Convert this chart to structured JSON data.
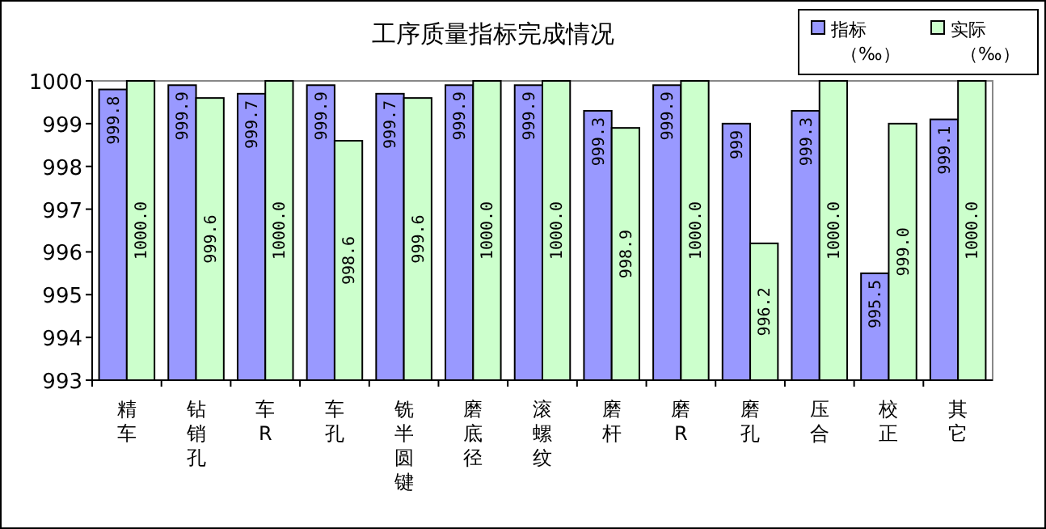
{
  "chart_data": {
    "type": "bar",
    "title": "工序质量指标完成情况",
    "categories": [
      "精车",
      "钻销孔",
      "车R",
      "车孔",
      "铣半圆键",
      "磨底径",
      "滚螺纹",
      "磨杆",
      "磨R",
      "磨孔",
      "压合",
      "校正",
      "其它"
    ],
    "series": [
      {
        "name": "指标（‰）",
        "color": "#9999ff",
        "values": [
          999.8,
          999.9,
          999.7,
          999.9,
          999.7,
          999.9,
          999.9,
          999.3,
          999.9,
          999,
          999.3,
          995.5,
          999.1
        ],
        "value_labels": [
          "999.8",
          "999.9",
          "999.7",
          "999.9",
          "999.7",
          "999.9",
          "999.9",
          "999.3",
          "999.9",
          "999",
          "999.3",
          "995.5",
          "999.1"
        ]
      },
      {
        "name": "实际（‰）",
        "color": "#ccffcc",
        "values": [
          1000,
          999.6,
          1000,
          998.6,
          999.6,
          1000,
          1000,
          998.9,
          1000,
          996.2,
          1000,
          999,
          1000
        ],
        "value_labels": [
          "1000.0",
          "999.6",
          "1000.0",
          "998.6",
          "999.6",
          "1000.0",
          "1000.0",
          "998.9",
          "1000.0",
          "996.2",
          "1000.0",
          "999.0",
          "1000.0"
        ]
      }
    ],
    "ylim": [
      993,
      1000
    ],
    "yticks": [
      993,
      994,
      995,
      996,
      997,
      998,
      999,
      1000
    ],
    "grid": false,
    "legend": "top right"
  }
}
